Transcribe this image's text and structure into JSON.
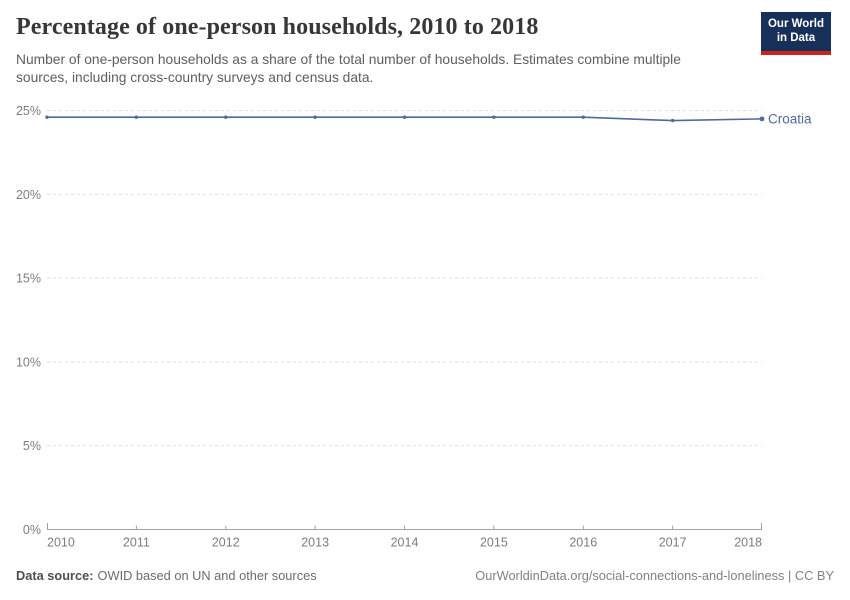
{
  "header": {
    "title": "Percentage of one-person households, 2010 to 2018",
    "subtitle": "Number of one-person households as a share of the total number of households. Estimates combine multiple sources, including cross-country surveys and census data."
  },
  "logo": {
    "line1": "Our World",
    "line2": "in Data",
    "bg_color": "#16305a",
    "accent_color": "#cd231e"
  },
  "footer": {
    "datasource_label": "Data source:",
    "datasource_text": "OWID based on UN and other sources",
    "credit": "OurWorldinData.org/social-connections-and-loneliness | CC BY"
  },
  "chart_data": {
    "type": "line",
    "title": "Percentage of one-person households, 2010 to 2018",
    "xlabel": "",
    "ylabel": "",
    "x": [
      2010,
      2011,
      2012,
      2013,
      2014,
      2015,
      2016,
      2017,
      2018
    ],
    "series": [
      {
        "name": "Croatia",
        "color": "#4c6a9c",
        "values": [
          24.6,
          24.6,
          24.6,
          24.6,
          24.6,
          24.6,
          24.6,
          24.4,
          24.5
        ]
      }
    ],
    "ylim": [
      0,
      25
    ],
    "yticks": [
      0,
      5,
      10,
      15,
      20,
      25
    ],
    "ytick_format": "{}%",
    "grid": "horizontal dashed gridlines",
    "legend_position": "label at end of line",
    "axis_color": "#a2a2a2",
    "gridline_color": "#dddddd",
    "tick_label_color": "#7d7d7d"
  }
}
